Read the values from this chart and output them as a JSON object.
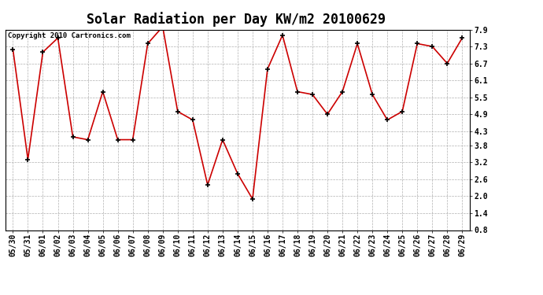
{
  "title": "Solar Radiation per Day KW/m2 20100629",
  "copyright": "Copyright 2010 Cartronics.com",
  "dates": [
    "05/30",
    "05/31",
    "06/01",
    "06/02",
    "06/03",
    "06/04",
    "06/05",
    "06/06",
    "06/07",
    "06/08",
    "06/09",
    "06/10",
    "06/11",
    "06/12",
    "06/13",
    "06/14",
    "06/15",
    "06/16",
    "06/17",
    "06/18",
    "06/19",
    "06/20",
    "06/21",
    "06/22",
    "06/23",
    "06/24",
    "06/25",
    "06/26",
    "06/27",
    "06/28",
    "06/29"
  ],
  "values": [
    7.2,
    3.3,
    7.1,
    7.6,
    4.1,
    4.0,
    5.7,
    4.0,
    4.0,
    7.4,
    8.0,
    5.0,
    4.7,
    2.4,
    4.0,
    2.8,
    1.9,
    6.5,
    7.7,
    5.7,
    5.6,
    4.9,
    5.7,
    7.4,
    5.6,
    4.7,
    5.0,
    7.4,
    7.3,
    6.7,
    7.6
  ],
  "line_color": "#cc0000",
  "marker": "+",
  "marker_color": "#000000",
  "bg_color": "#ffffff",
  "plot_bg_color": "#ffffff",
  "grid_color": "#b0b0b0",
  "ylim": [
    0.8,
    7.9
  ],
  "yticks": [
    0.8,
    1.4,
    2.0,
    2.6,
    3.2,
    3.8,
    4.3,
    4.9,
    5.5,
    6.1,
    6.7,
    7.3,
    7.9
  ],
  "title_fontsize": 12,
  "tick_fontsize": 7,
  "copyright_fontsize": 6.5
}
